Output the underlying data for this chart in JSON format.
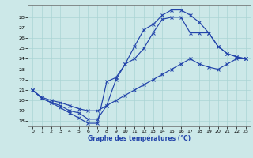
{
  "xlabel": "Graphe des températures (°C)",
  "bg_color": "#cce8e8",
  "grid_color": "#aad4d4",
  "line_color": "#2244aa",
  "ylim": [
    17.5,
    29.2
  ],
  "yticks": [
    18,
    19,
    20,
    21,
    22,
    23,
    24,
    25,
    26,
    27,
    28
  ],
  "xlim": [
    -0.5,
    23.5
  ],
  "xticks": [
    0,
    1,
    2,
    3,
    4,
    5,
    6,
    7,
    8,
    9,
    10,
    11,
    12,
    13,
    14,
    15,
    16,
    17,
    18,
    19,
    20,
    21,
    22,
    23
  ],
  "curve1_x": [
    0,
    1,
    2,
    3,
    4,
    5,
    6,
    7,
    8,
    9,
    10,
    11,
    12,
    13,
    14,
    15,
    16,
    17,
    18,
    19,
    20,
    21,
    22,
    23
  ],
  "curve1_y": [
    21.0,
    20.2,
    19.8,
    19.5,
    19.0,
    18.8,
    18.2,
    18.2,
    19.5,
    22.0,
    23.5,
    25.2,
    26.8,
    27.3,
    28.2,
    28.7,
    28.7,
    28.2,
    27.5,
    26.5,
    25.2,
    24.5,
    24.2,
    24.0
  ],
  "curve2_x": [
    0,
    1,
    2,
    3,
    4,
    5,
    6,
    7,
    8,
    9,
    10,
    11,
    12,
    13,
    14,
    15,
    16,
    17,
    18,
    19,
    20,
    21,
    22,
    23
  ],
  "curve2_y": [
    21.0,
    20.3,
    20.0,
    19.8,
    19.5,
    19.2,
    19.0,
    19.0,
    19.5,
    20.0,
    20.5,
    21.0,
    21.5,
    22.0,
    22.5,
    23.0,
    23.5,
    24.0,
    23.5,
    23.2,
    23.0,
    23.5,
    24.0,
    24.0
  ],
  "curve3_x": [
    0,
    1,
    2,
    3,
    4,
    5,
    6,
    7,
    8,
    9,
    10,
    11,
    12,
    13,
    14,
    15,
    16,
    17,
    18,
    19,
    20,
    21,
    22,
    23
  ],
  "curve3_y": [
    21.0,
    20.2,
    19.8,
    19.3,
    18.8,
    18.3,
    17.8,
    17.8,
    21.8,
    22.2,
    23.5,
    24.0,
    25.0,
    26.5,
    27.8,
    28.0,
    28.0,
    26.5,
    26.5,
    26.5,
    25.2,
    24.5,
    24.2,
    24.0
  ]
}
